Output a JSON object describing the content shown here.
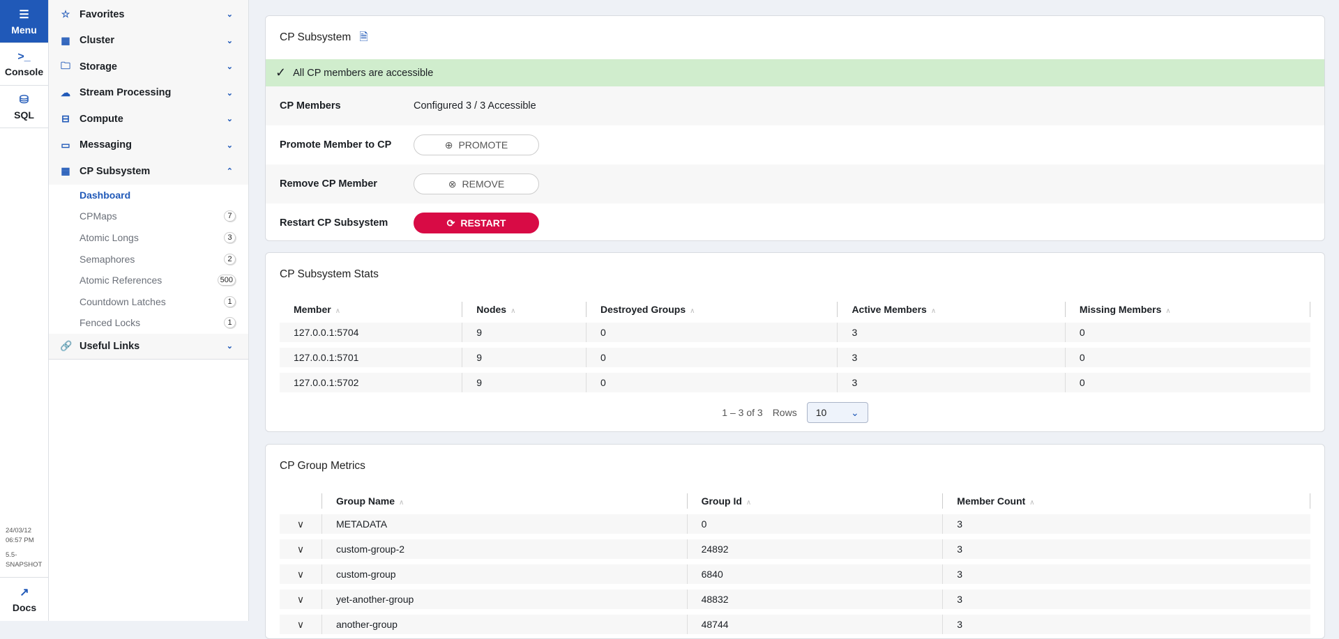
{
  "rail": {
    "menu": "Menu",
    "console": "Console",
    "sql": "SQL",
    "date": "24/03/12",
    "time": "06:57 PM",
    "version_a": "5.5-",
    "version_b": "SNAPSHOT",
    "docs": "Docs"
  },
  "sidebar": {
    "sections": [
      {
        "label": "Favorites",
        "icon": "star-icon"
      },
      {
        "label": "Cluster",
        "icon": "grid-icon"
      },
      {
        "label": "Storage",
        "icon": "folder-icon"
      },
      {
        "label": "Stream Processing",
        "icon": "cloud-icon"
      },
      {
        "label": "Compute",
        "icon": "drive-icon"
      },
      {
        "label": "Messaging",
        "icon": "chat-icon"
      },
      {
        "label": "CP Subsystem",
        "icon": "grid-icon"
      }
    ],
    "cp_items": [
      {
        "label": "Dashboard",
        "count": null
      },
      {
        "label": "CPMaps",
        "count": "7"
      },
      {
        "label": "Atomic Longs",
        "count": "3"
      },
      {
        "label": "Semaphores",
        "count": "2"
      },
      {
        "label": "Atomic References",
        "count": "500"
      },
      {
        "label": "Countdown Latches",
        "count": "1"
      },
      {
        "label": "Fenced Locks",
        "count": "1"
      }
    ],
    "useful_links": "Useful Links"
  },
  "overview": {
    "title": "CP Subsystem",
    "banner": "All CP members are accessible",
    "members_label": "CP Members",
    "members_value": "Configured 3 / 3 Accessible",
    "promote_label": "Promote Member to CP",
    "promote_button": "PROMOTE",
    "remove_label": "Remove CP Member",
    "remove_button": "REMOVE",
    "restart_label": "Restart CP Subsystem",
    "restart_button": "RESTART",
    "accent": "#2059b8",
    "danger": "#d80b45",
    "success_bg": "#d0edcd"
  },
  "stats": {
    "title": "CP Subsystem Stats",
    "columns": [
      "Member",
      "Nodes",
      "Destroyed Groups",
      "Active Members",
      "Missing Members"
    ],
    "rows": [
      [
        "127.0.0.1:5704",
        "9",
        "0",
        "3",
        "0"
      ],
      [
        "127.0.0.1:5701",
        "9",
        "0",
        "3",
        "0"
      ],
      [
        "127.0.0.1:5702",
        "9",
        "0",
        "3",
        "0"
      ]
    ],
    "range": "1 – 3 of 3",
    "rows_label": "Rows",
    "rows_value": "10"
  },
  "groups": {
    "title": "CP Group Metrics",
    "columns": [
      "Group Name",
      "Group Id",
      "Member Count"
    ],
    "rows": [
      [
        "METADATA",
        "0",
        "3"
      ],
      [
        "custom-group-2",
        "24892",
        "3"
      ],
      [
        "custom-group",
        "6840",
        "3"
      ],
      [
        "yet-another-group",
        "48832",
        "3"
      ],
      [
        "another-group",
        "48744",
        "3"
      ]
    ]
  }
}
